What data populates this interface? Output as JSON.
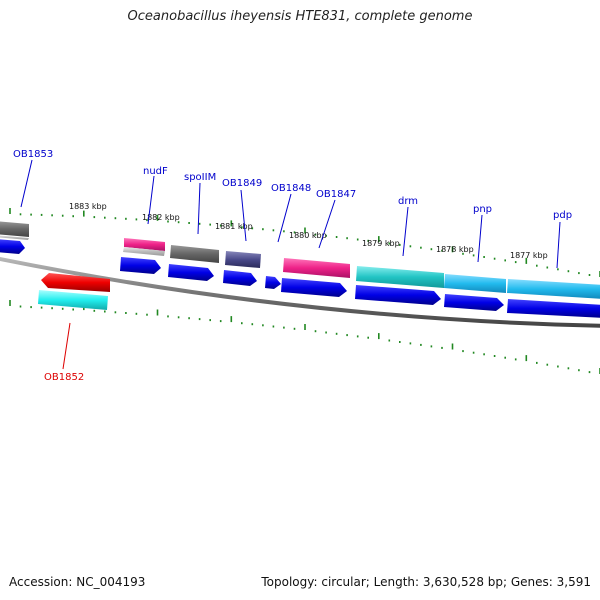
{
  "header": {
    "title": "Oceanobacillus iheyensis HTE831, complete genome"
  },
  "footer": {
    "accession": "Accession: NC_004193",
    "topology": "Topology: circular; Length: 3,630,528 bp; Genes: 3,591"
  },
  "ruler": {
    "labels": [
      "1883 kbp",
      "1882 kbp",
      "1881 kbp",
      "1880 kbp",
      "1879 kbp",
      "1878 kbp",
      "1877 kbp"
    ]
  },
  "genes": [
    {
      "name": "OB1853",
      "color": "#0000cc"
    },
    {
      "name": "nudF",
      "color": "#0000cc"
    },
    {
      "name": "spoIIM",
      "color": "#0000cc"
    },
    {
      "name": "OB1849",
      "color": "#0000cc"
    },
    {
      "name": "OB1848",
      "color": "#0000cc"
    },
    {
      "name": "OB1847",
      "color": "#0000cc"
    },
    {
      "name": "drm",
      "color": "#0000cc"
    },
    {
      "name": "pnp",
      "color": "#0000cc"
    },
    {
      "name": "pdp",
      "color": "#0000cc"
    },
    {
      "name": "OB1852",
      "color": "#dd0000"
    }
  ],
  "colors": {
    "cds_blue": "#0000e6",
    "cds_red": "#ee0000",
    "tick_green": "#228822",
    "cog_gray": "#666666",
    "cog_pink": "#ee2288",
    "cog_purple": "#4a4a8a",
    "cog_teal": "#22c4c4",
    "cog_sky": "#22bbee",
    "cog_cyan": "#22eeee"
  }
}
